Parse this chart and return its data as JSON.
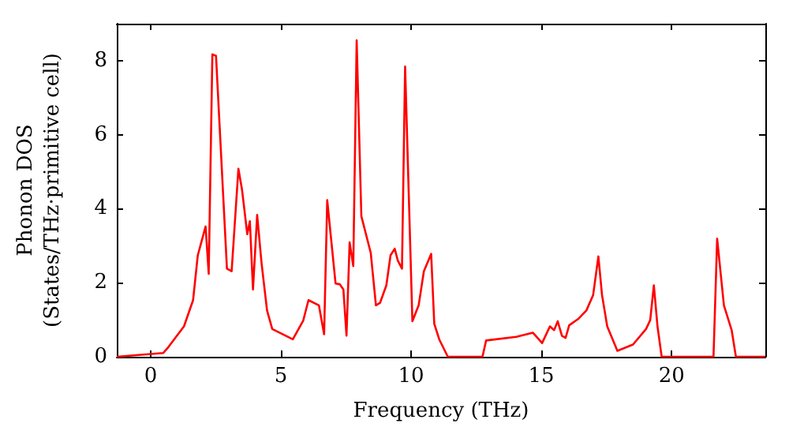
{
  "chart_data": {
    "type": "line",
    "xlabel": "Frequency (THz)",
    "ylabel": "Phonon DOS\n(States/THz·primitive cell)",
    "xlim": [
      -1.3,
      23.6
    ],
    "ylim": [
      0,
      9
    ],
    "xticks": [
      0,
      5,
      10,
      15,
      20
    ],
    "yticks": [
      0,
      2,
      4,
      6,
      8
    ],
    "grid": false,
    "marker": "none",
    "line_style": "solid",
    "series": [
      {
        "color": "#ff0000",
        "x": [
          -1.3,
          0.48,
          0.68,
          1.28,
          1.63,
          1.81,
          2.11,
          2.23,
          2.37,
          2.51,
          2.93,
          3.11,
          3.37,
          3.51,
          3.71,
          3.81,
          3.93,
          4.09,
          4.26,
          4.47,
          4.67,
          5.46,
          5.86,
          6.06,
          6.46,
          6.66,
          6.78,
          7.1,
          7.26,
          7.4,
          7.52,
          7.64,
          7.78,
          7.91,
          8.09,
          8.45,
          8.65,
          8.81,
          9.05,
          9.21,
          9.37,
          9.49,
          9.65,
          9.77,
          10.05,
          10.29,
          10.49,
          10.77,
          10.89,
          11.08,
          11.41,
          12.74,
          12.88,
          14.04,
          14.68,
          15.03,
          15.33,
          15.49,
          15.63,
          15.79,
          15.93,
          16.07,
          16.43,
          16.73,
          16.99,
          17.19,
          17.33,
          17.53,
          17.92,
          18.52,
          19.02,
          19.18,
          19.32,
          19.46,
          19.62,
          21.61,
          21.75,
          22.01,
          22.31,
          22.47,
          23.6
        ],
        "values": [
          0,
          0.1,
          0.26,
          0.82,
          1.53,
          2.74,
          3.52,
          2.24,
          8.17,
          8.13,
          2.38,
          2.31,
          5.08,
          4.51,
          3.31,
          3.66,
          1.82,
          3.83,
          2.52,
          1.25,
          0.75,
          0.47,
          0.98,
          1.53,
          1.39,
          0.61,
          4.23,
          1.98,
          1.96,
          1.82,
          0.57,
          3.09,
          2.45,
          8.55,
          3.8,
          2.81,
          1.39,
          1.46,
          1.93,
          2.74,
          2.92,
          2.6,
          2.38,
          7.84,
          0.96,
          1.39,
          2.31,
          2.78,
          0.89,
          0.47,
          0,
          0,
          0.44,
          0.54,
          0.65,
          0.37,
          0.82,
          0.72,
          0.96,
          0.57,
          0.51,
          0.85,
          1.03,
          1.25,
          1.67,
          2.71,
          1.67,
          0.82,
          0.16,
          0.33,
          0.75,
          0.99,
          1.93,
          0.82,
          0,
          0,
          3.19,
          1.39,
          0.71,
          0,
          0
        ]
      }
    ]
  }
}
